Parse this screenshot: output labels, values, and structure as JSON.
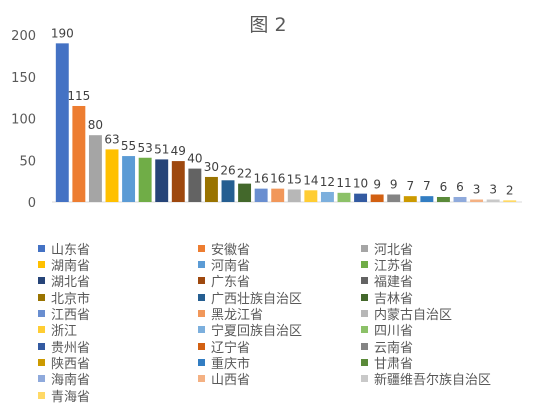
{
  "chart_data": {
    "type": "bar",
    "title": "图 2",
    "xlabel": "",
    "ylabel": "",
    "ylim": [
      0,
      200
    ],
    "yticks": [
      0,
      50,
      100,
      150,
      200
    ],
    "grid": false,
    "legend": "bottom",
    "categories": [
      "山东省",
      "安徽省",
      "河北省",
      "湖南省",
      "河南省",
      "江苏省",
      "湖北省",
      "广东省",
      "福建省",
      "北京市",
      "广西壮族自治区",
      "吉林省",
      "江西省",
      "黑龙江省",
      "内蒙古自治区",
      "浙江",
      "宁夏回族自治区",
      "四川省",
      "贵州省",
      "辽宁省",
      "云南省",
      "陕西省",
      "重庆市",
      "甘肃省",
      "海南省",
      "山西省",
      "新疆维吾尔族自治区",
      "青海省"
    ],
    "values": [
      190,
      115,
      80,
      63,
      55,
      53,
      51,
      49,
      40,
      30,
      26,
      22,
      16,
      16,
      15,
      14,
      12,
      11,
      10,
      9,
      9,
      7,
      7,
      6,
      6,
      3,
      3,
      2
    ],
    "colors": [
      "#4472C4",
      "#ED7D31",
      "#A5A5A5",
      "#FFC000",
      "#5B9BD5",
      "#70AD47",
      "#264478",
      "#9E480E",
      "#636363",
      "#997300",
      "#255E91",
      "#43682B",
      "#698ED0",
      "#F1975A",
      "#B7B7B7",
      "#FFCD33",
      "#7CAFDD",
      "#8CC168",
      "#335AA1",
      "#D26012",
      "#848484",
      "#CC9A00",
      "#327DC2",
      "#5A8A39",
      "#8FAADC",
      "#F4B183",
      "#C9C9C9",
      "#FFD966"
    ]
  }
}
